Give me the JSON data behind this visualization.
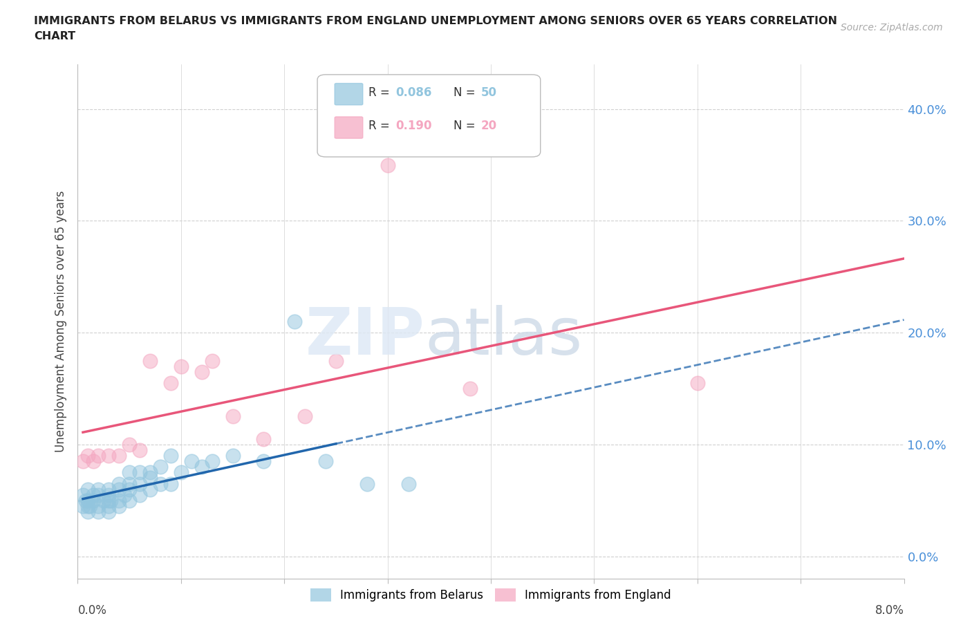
{
  "title_line1": "IMMIGRANTS FROM BELARUS VS IMMIGRANTS FROM ENGLAND UNEMPLOYMENT AMONG SENIORS OVER 65 YEARS CORRELATION",
  "title_line2": "CHART",
  "source": "Source: ZipAtlas.com",
  "ylabel": "Unemployment Among Seniors over 65 years",
  "ytick_labels": [
    "0.0%",
    "10.0%",
    "20.0%",
    "30.0%",
    "40.0%"
  ],
  "ytick_values": [
    0.0,
    0.1,
    0.2,
    0.3,
    0.4
  ],
  "xlim": [
    0.0,
    0.08
  ],
  "ylim": [
    -0.02,
    0.44
  ],
  "legend_R_belarus": "0.086",
  "legend_N_belarus": "50",
  "legend_R_england": "0.190",
  "legend_N_england": "20",
  "color_belarus": "#92c5de",
  "color_england": "#f4a6c0",
  "color_trend_belarus": "#2166ac",
  "color_trend_england": "#e8567a",
  "belarus_x": [
    0.0005,
    0.0005,
    0.0008,
    0.001,
    0.001,
    0.001,
    0.001,
    0.0012,
    0.0015,
    0.0015,
    0.002,
    0.002,
    0.002,
    0.002,
    0.0025,
    0.003,
    0.003,
    0.003,
    0.003,
    0.003,
    0.0032,
    0.004,
    0.004,
    0.004,
    0.004,
    0.0045,
    0.005,
    0.005,
    0.005,
    0.005,
    0.006,
    0.006,
    0.006,
    0.007,
    0.007,
    0.007,
    0.008,
    0.008,
    0.009,
    0.009,
    0.01,
    0.011,
    0.012,
    0.013,
    0.015,
    0.018,
    0.021,
    0.024,
    0.028,
    0.032
  ],
  "belarus_y": [
    0.045,
    0.055,
    0.05,
    0.04,
    0.045,
    0.05,
    0.06,
    0.045,
    0.05,
    0.055,
    0.04,
    0.045,
    0.055,
    0.06,
    0.05,
    0.04,
    0.045,
    0.05,
    0.055,
    0.06,
    0.05,
    0.045,
    0.05,
    0.06,
    0.065,
    0.055,
    0.05,
    0.06,
    0.065,
    0.075,
    0.055,
    0.065,
    0.075,
    0.06,
    0.07,
    0.075,
    0.065,
    0.08,
    0.065,
    0.09,
    0.075,
    0.085,
    0.08,
    0.085,
    0.09,
    0.085,
    0.21,
    0.085,
    0.065,
    0.065
  ],
  "england_x": [
    0.0005,
    0.001,
    0.0015,
    0.002,
    0.003,
    0.004,
    0.005,
    0.006,
    0.007,
    0.009,
    0.01,
    0.012,
    0.013,
    0.015,
    0.018,
    0.022,
    0.025,
    0.03,
    0.038,
    0.06
  ],
  "england_y": [
    0.085,
    0.09,
    0.085,
    0.09,
    0.09,
    0.09,
    0.1,
    0.095,
    0.175,
    0.155,
    0.17,
    0.165,
    0.175,
    0.125,
    0.105,
    0.125,
    0.175,
    0.35,
    0.15,
    0.155
  ],
  "belarus_trend_x_end_solid": 0.025,
  "grid_color": "#d0d0d0",
  "background_color": "#ffffff"
}
